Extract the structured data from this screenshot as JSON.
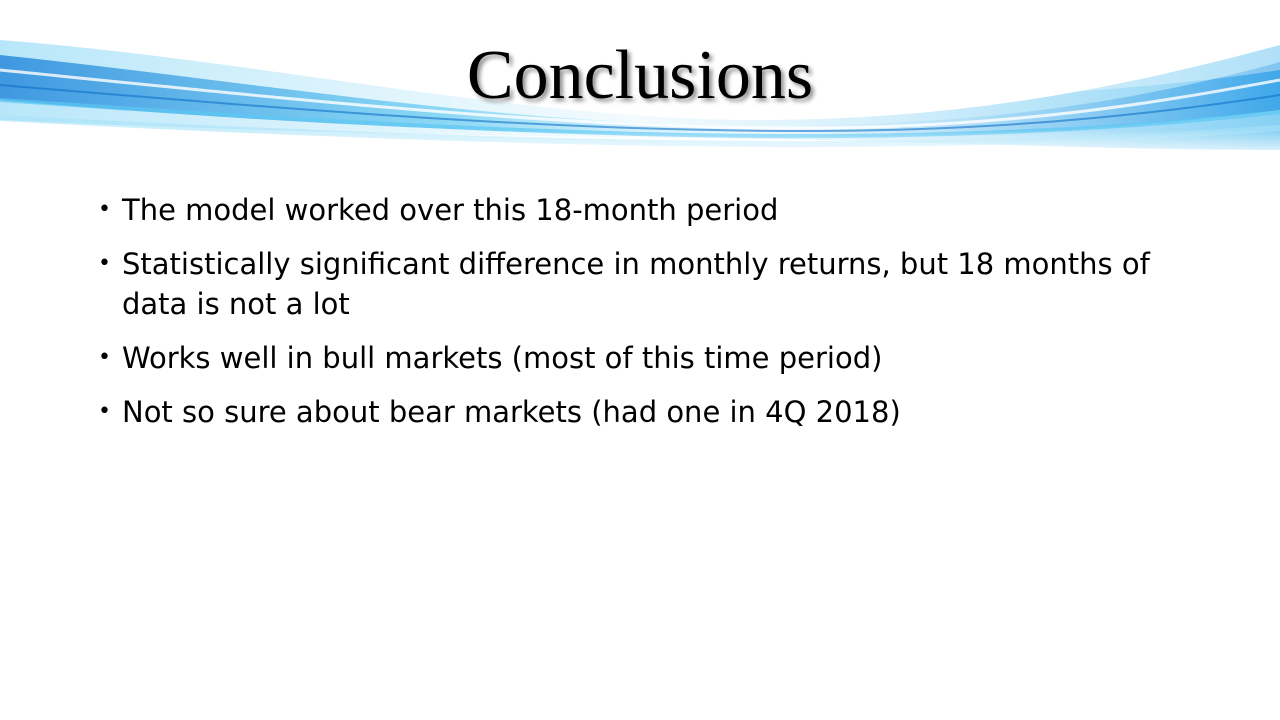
{
  "slide": {
    "title": "Conclusions",
    "bullets": [
      "The model worked over this 18-month period",
      "Statistically significant difference in monthly returns, but 18 months of data is not a lot",
      "Works well in bull markets (most of this time period)",
      "Not so sure about bear markets (had one in 4Q 2018)"
    ],
    "bullet_marker": "•"
  },
  "colors": {
    "wave_deep": "#1a8fe0",
    "wave_mid": "#4fc3f0",
    "wave_light": "#bfe9fb",
    "text": "#000000"
  }
}
